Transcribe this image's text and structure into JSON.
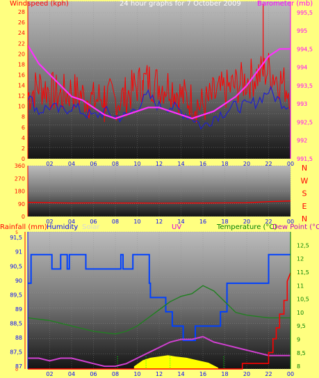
{
  "header": {
    "windspeed_label": "Windspeed (kph)",
    "title": "24 hour graphs for 7 October 2009",
    "barometer_label": "Barometer (mb)"
  },
  "colors": {
    "background": "#ffff80",
    "wind_red": "#ff0000",
    "wind_avg_blue": "#2020d0",
    "barometer_magenta": "#ff30ff",
    "humidity_blue": "#0040ff",
    "temperature_green": "#208020",
    "dewpoint_magenta": "#d040d0",
    "solar_yellow": "#ffff00",
    "rain_red": "#ff0000",
    "uv_green": "#00ff00"
  },
  "bottom_labels": {
    "rainfall": "Rainfall (mm)",
    "humidity": "Humidity",
    "solar": "Solar",
    "uv": "UV",
    "temperature": "Temperature (°C)",
    "dewpoint": "Dew Point (°C"
  },
  "chart_data": [
    {
      "type": "line",
      "title": "24 hour graphs for 7 October 2009",
      "ylabel": "Windspeed (kph)",
      "y2label": "Barometer (mb)",
      "x_ticks": [
        "02",
        "04",
        "06",
        "08",
        "10",
        "12",
        "14",
        "16",
        "18",
        "20",
        "22",
        "00"
      ],
      "x": [
        0,
        1,
        2,
        3,
        4,
        5,
        6,
        7,
        8,
        9,
        10,
        11,
        12,
        13,
        14,
        15,
        16,
        17,
        18,
        19,
        20,
        21,
        22,
        23,
        24
      ],
      "ylim": [
        0,
        30
      ],
      "y_ticks": [
        "0",
        "2",
        "4",
        "6",
        "8",
        "10",
        "12",
        "14",
        "16",
        "18",
        "20",
        "22",
        "24",
        "26",
        "28"
      ],
      "y2lim": [
        991.5,
        995.8
      ],
      "y2_ticks": [
        "991,5",
        "992",
        "992,5",
        "993",
        "993,5",
        "994",
        "994,5",
        "995",
        "995,5"
      ],
      "series": [
        {
          "role": "gust",
          "color": "#ff0000",
          "values": [
            12,
            14,
            13,
            12,
            13,
            12,
            11,
            12,
            11,
            12,
            14,
            15,
            14,
            14,
            12,
            11,
            10,
            12,
            13,
            14,
            15,
            16,
            17,
            15,
            13
          ],
          "spikes": [
            [
              21.5,
              29.5
            ],
            [
              5.5,
              8
            ],
            [
              7,
              7
            ],
            [
              10.5,
              13
            ]
          ]
        },
        {
          "role": "average",
          "color": "#2020d0",
          "values": [
            12,
            9,
            10,
            9,
            10,
            9,
            8,
            9,
            8,
            8,
            10,
            12,
            10,
            10,
            9,
            8,
            6,
            8,
            9,
            10,
            10,
            11,
            13,
            11,
            10
          ]
        },
        {
          "role": "barometer",
          "axis": "y2",
          "color": "#ff30ff",
          "values": [
            994.6,
            994.1,
            993.8,
            993.5,
            993.2,
            993.1,
            992.9,
            992.7,
            992.6,
            992.7,
            992.8,
            992.9,
            992.9,
            992.8,
            992.7,
            992.6,
            992.7,
            992.8,
            993.0,
            993.2,
            993.5,
            993.9,
            994.3,
            994.5,
            994.5
          ]
        }
      ]
    },
    {
      "type": "line",
      "x_ticks": [
        "02",
        "04",
        "06",
        "08",
        "10",
        "12",
        "14",
        "16",
        "18",
        "20",
        "22",
        "00"
      ],
      "ylim": [
        0,
        360
      ],
      "y_ticks": [
        "0",
        "90",
        "180",
        "270",
        "360"
      ],
      "y2_ticks": [
        "N",
        "W",
        "S",
        "E",
        "N"
      ],
      "x": [
        0,
        2,
        4,
        6,
        8,
        10,
        12,
        14,
        16,
        18,
        20,
        22,
        24
      ],
      "series": [
        {
          "role": "direction",
          "color": "#ff0000",
          "values": [
            100,
            97,
            95,
            96,
            95,
            95,
            94,
            95,
            95,
            96,
            97,
            105,
            110
          ]
        }
      ]
    },
    {
      "type": "line",
      "x_ticks": [
        "02",
        "04",
        "06",
        "08",
        "10",
        "12",
        "14",
        "16",
        "18",
        "20",
        "22",
        "00"
      ],
      "humidity_ylim": [
        86.9,
        91.7
      ],
      "humidity_ticks": [
        "87",
        "87,5",
        "88",
        "88,5",
        "89",
        "89,5",
        "90",
        "90,5",
        "91",
        "91,5"
      ],
      "temperature_ylim": [
        7.9,
        13.0
      ],
      "temperature_ticks": [
        "8",
        "8,5",
        "9",
        "9,5",
        "10",
        "10,5",
        "11",
        "11,5",
        "12",
        "12,5"
      ],
      "rain_ylim": [
        0,
        5
      ],
      "rain_ticks": [
        "0",
        "5"
      ],
      "series": [
        {
          "role": "humidity",
          "color": "#0040ff",
          "x": [
            0,
            0.3,
            0.3,
            2.2,
            2.2,
            3,
            3,
            3.6,
            3.6,
            3.8,
            3.8,
            5.3,
            5.3,
            8.5,
            8.5,
            8.7,
            8.7,
            9.6,
            9.6,
            11.1,
            11.1,
            11.2,
            11.2,
            12.6,
            12.6,
            13.2,
            13.2,
            14.2,
            14.2,
            15.3,
            15.3,
            17.6,
            17.6,
            18.2,
            18.2,
            22,
            22,
            24
          ],
          "values": [
            89.9,
            89.9,
            90.9,
            90.9,
            90.4,
            90.4,
            90.9,
            90.9,
            90.4,
            90.4,
            90.9,
            90.9,
            90.4,
            90.4,
            90.9,
            90.9,
            90.4,
            90.4,
            90.9,
            90.9,
            89.9,
            89.9,
            89.4,
            89.4,
            88.9,
            88.9,
            88.4,
            88.4,
            87.9,
            87.9,
            88.4,
            88.4,
            88.9,
            88.9,
            89.9,
            89.9,
            90.9,
            90.9
          ]
        },
        {
          "role": "temperature",
          "color": "#208020",
          "x": [
            0,
            2,
            4,
            6,
            8,
            9,
            10,
            11,
            12,
            13,
            14,
            15,
            16,
            17,
            18,
            19,
            20,
            22,
            24
          ],
          "values": [
            9.8,
            9.7,
            9.5,
            9.3,
            9.2,
            9.3,
            9.5,
            9.8,
            10.1,
            10.4,
            10.6,
            10.7,
            11.0,
            10.8,
            10.4,
            10.0,
            9.9,
            9.8,
            9.8
          ]
        },
        {
          "role": "dewpoint",
          "color": "#d040d0",
          "x": [
            0,
            1,
            2,
            3,
            4,
            5,
            6,
            7,
            8,
            9,
            10,
            11,
            12,
            13,
            14,
            15,
            16,
            17,
            18,
            19,
            20,
            21,
            22,
            23,
            24
          ],
          "values": [
            8.3,
            8.3,
            8.2,
            8.3,
            8.3,
            8.2,
            8.1,
            8.0,
            8.0,
            8.1,
            8.3,
            8.5,
            8.7,
            8.9,
            9.0,
            9.0,
            9.1,
            8.9,
            8.8,
            8.7,
            8.6,
            8.5,
            8.4,
            8.4,
            8.4
          ]
        },
        {
          "role": "solar",
          "color": "#ffff00",
          "x": [
            9.7,
            10.5,
            11.2,
            12,
            12.8,
            13.5,
            14.5,
            15.5,
            16.5,
            17.4
          ],
          "values": [
            0.1,
            0.35,
            0.45,
            0.5,
            0.55,
            0.5,
            0.45,
            0.35,
            0.25,
            0.05
          ]
        },
        {
          "role": "rainfall",
          "color": "#ff0000",
          "x": [
            0,
            19,
            19.6,
            19.6,
            22,
            22,
            22.4,
            22.4,
            22.7,
            22.7,
            23,
            23,
            23.4,
            23.4,
            23.7,
            23.7,
            24
          ],
          "values": [
            0,
            0,
            0,
            0.2,
            0.2,
            0.6,
            0.6,
            1.1,
            1.1,
            1.5,
            1.5,
            2.0,
            2.0,
            2.5,
            2.5,
            3.2,
            3.5
          ]
        },
        {
          "role": "uv",
          "color": "#00ff00",
          "marks": [
            8.2,
            10.8,
            13,
            17.9
          ]
        }
      ]
    }
  ]
}
